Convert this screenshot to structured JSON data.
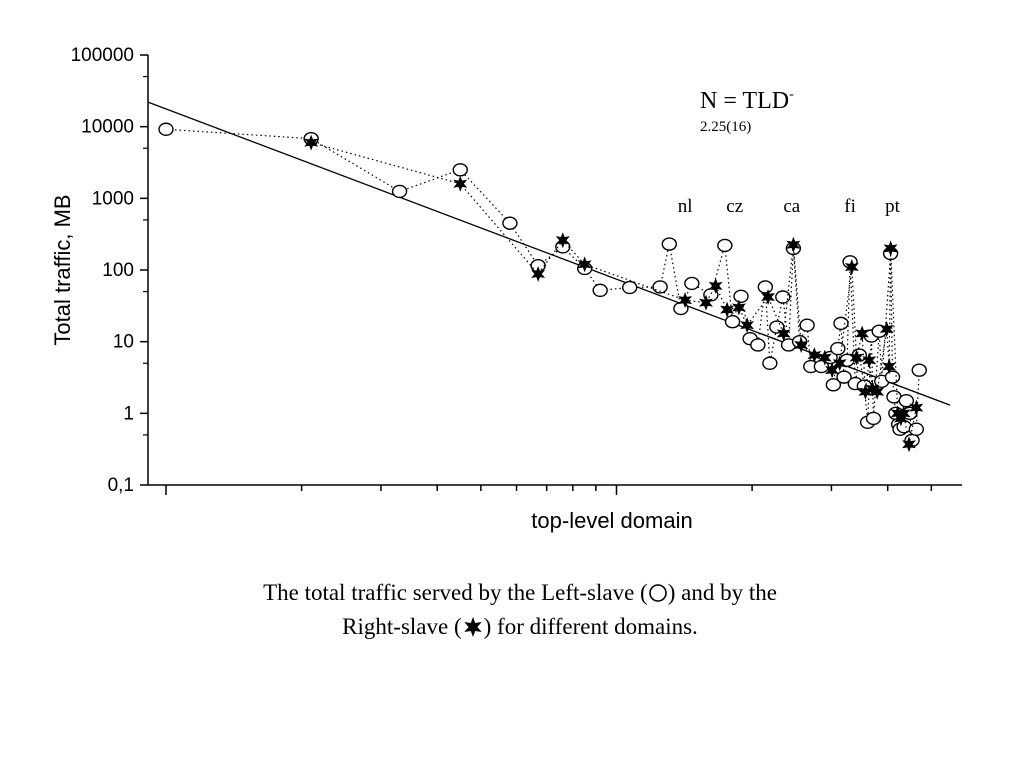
{
  "chart_data": {
    "type": "scatter",
    "ylabel": "Total traffic, MB",
    "xlabel": "top-level domain",
    "y_scale": "log",
    "x_scale": "log",
    "ylim": [
      0.1,
      100000
    ],
    "y_ticks": [
      "100000",
      "10000",
      "1000",
      "100",
      "10",
      "1",
      "0,1"
    ],
    "x_tick_labels": [],
    "grid": false,
    "fit_line": {
      "label": "N = TLD",
      "exponent_sign": "-",
      "exponent": "2.25(16)",
      "x_range": [
        1,
        90
      ],
      "y_range": [
        22000,
        1.3
      ]
    },
    "annotations": [
      "nl",
      "cz",
      "ca",
      "fi",
      "pt"
    ],
    "annotation_positions": [
      {
        "text": "nl",
        "x": 14.2
      },
      {
        "text": "cz",
        "x": 18.3
      },
      {
        "text": "ca",
        "x": 24.5
      },
      {
        "text": "fi",
        "x": 33
      },
      {
        "text": "pt",
        "x": 41
      }
    ],
    "series": [
      {
        "name": "Left-slave",
        "marker": "circle",
        "points": [
          [
            1,
            9200
          ],
          [
            2.1,
            6800
          ],
          [
            3.3,
            1250
          ],
          [
            4.5,
            2500
          ],
          [
            5.8,
            450
          ],
          [
            6.7,
            115
          ],
          [
            7.6,
            210
          ],
          [
            8.5,
            105
          ],
          [
            9.2,
            52
          ],
          [
            10.7,
            57
          ],
          [
            12.5,
            58
          ],
          [
            13.1,
            230
          ],
          [
            13.9,
            29
          ],
          [
            14.7,
            65
          ],
          [
            16.2,
            45
          ],
          [
            17.4,
            220
          ],
          [
            18.1,
            19
          ],
          [
            18.9,
            43
          ],
          [
            19.8,
            11
          ],
          [
            20.6,
            9
          ],
          [
            21.4,
            58
          ],
          [
            21.9,
            5
          ],
          [
            22.7,
            16
          ],
          [
            23.4,
            42
          ],
          [
            24.1,
            9
          ],
          [
            24.7,
            200
          ],
          [
            25.5,
            10
          ],
          [
            26.5,
            17
          ],
          [
            27,
            4.5
          ],
          [
            28.5,
            4.5
          ],
          [
            29.8,
            6
          ],
          [
            30.3,
            2.5
          ],
          [
            31,
            8
          ],
          [
            31.5,
            18
          ],
          [
            32,
            3.2
          ],
          [
            32.5,
            5.5
          ],
          [
            33,
            130
          ],
          [
            33.9,
            2.6
          ],
          [
            34.6,
            6.5
          ],
          [
            35.5,
            2.4
          ],
          [
            36.1,
            0.75
          ],
          [
            36.8,
            12
          ],
          [
            37.2,
            0.85
          ],
          [
            38.3,
            14
          ],
          [
            38.8,
            2.8
          ],
          [
            40.6,
            170
          ],
          [
            41,
            3.2
          ],
          [
            41.3,
            1.7
          ],
          [
            41.7,
            1
          ],
          [
            42.3,
            0.7
          ],
          [
            42.6,
            0.6
          ],
          [
            43.5,
            0.65
          ],
          [
            44,
            1.5
          ],
          [
            44.8,
            1
          ],
          [
            45.3,
            0.42
          ],
          [
            46.3,
            0.6
          ],
          [
            47,
            4
          ]
        ]
      },
      {
        "name": "Right-slave",
        "marker": "star",
        "points": [
          [
            2.1,
            6000
          ],
          [
            4.5,
            1600
          ],
          [
            6.7,
            88
          ],
          [
            7.6,
            260
          ],
          [
            8.5,
            120
          ],
          [
            14.2,
            38
          ],
          [
            15.8,
            35
          ],
          [
            16.6,
            60
          ],
          [
            17.6,
            28
          ],
          [
            18.7,
            30
          ],
          [
            19.5,
            17
          ],
          [
            21.7,
            42
          ],
          [
            23.5,
            13
          ],
          [
            24.7,
            225
          ],
          [
            25.7,
            9
          ],
          [
            27.5,
            6.5
          ],
          [
            29,
            6
          ],
          [
            30.1,
            4
          ],
          [
            31.3,
            5
          ],
          [
            33.3,
            110
          ],
          [
            34.1,
            6
          ],
          [
            35.1,
            13
          ],
          [
            35.7,
            2
          ],
          [
            36.4,
            5.5
          ],
          [
            37,
            2.2
          ],
          [
            37.9,
            2
          ],
          [
            39.8,
            15
          ],
          [
            40.3,
            4.5
          ],
          [
            40.6,
            200
          ],
          [
            42.1,
            1
          ],
          [
            42.8,
            0.85
          ],
          [
            43.4,
            1
          ],
          [
            44.6,
            0.37
          ],
          [
            46.3,
            1.2
          ]
        ]
      }
    ]
  },
  "caption": {
    "line1": "The total traffic served by the Left-slave (",
    "line1_after": ") and by the",
    "line2": "Right-slave (",
    "line2_after": ") for different domains."
  }
}
